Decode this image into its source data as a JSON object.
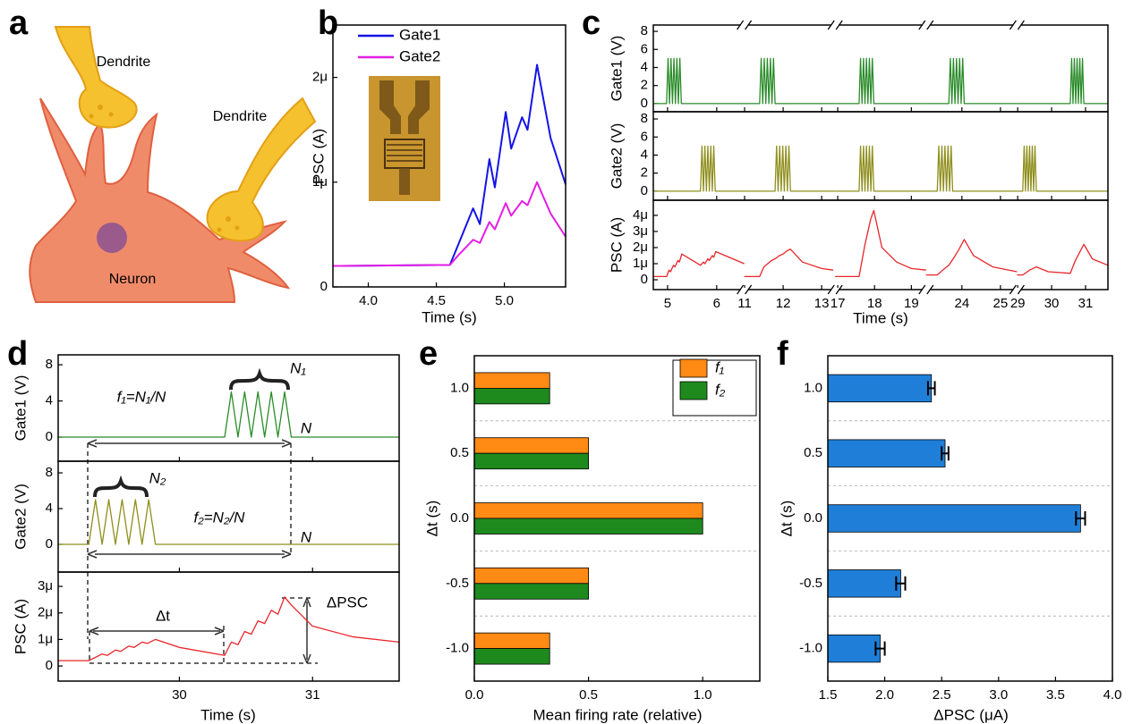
{
  "panel_labels": [
    "a",
    "b",
    "c",
    "d",
    "e",
    "f"
  ],
  "illustration": {
    "labels": [
      "Dendrite",
      "Dendrite",
      "Neuron"
    ]
  },
  "chart_data": [
    {
      "type": "line",
      "x_label": "Time (s)",
      "y_label": "PSC (A)",
      "xlim": [
        3.74,
        5.45
      ],
      "xticks": [
        {
          "value": 4,
          "label": "4.0"
        },
        4.5,
        {
          "value": 5,
          "label": "5.0"
        }
      ],
      "ylim": [
        0,
        2.5e-06
      ],
      "yticks": [
        0,
        {
          "value": 1e-06,
          "label": "1μ"
        },
        {
          "value": 2e-06,
          "label": "2μ"
        }
      ],
      "legend": "upper-left",
      "x": [
        3.74,
        4.6,
        4.66,
        4.77,
        4.82,
        4.89,
        4.93,
        5.01,
        5.05,
        5.13,
        5.17,
        5.24,
        5.34,
        5.45
      ],
      "series": [
        {
          "name": "Gate1",
          "color": "#1414e6",
          "values": [
            2e-07,
            2.1e-07,
            4e-07,
            7.5e-07,
            6e-07,
            1.22e-06,
            9.5e-07,
            1.67e-06,
            1.32e-06,
            1.62e-06,
            1.5e-06,
            2.12e-06,
            1.42e-06,
            9.8e-07
          ]
        },
        {
          "name": "Gate2",
          "color": "#e41ee4",
          "values": [
            2e-07,
            2.1e-07,
            3e-07,
            4.5e-07,
            4.2e-07,
            6.2e-07,
            5.5e-07,
            8e-07,
            6.8e-07,
            8.2e-07,
            7.8e-07,
            1e-06,
            7e-07,
            4.8e-07
          ]
        }
      ]
    },
    {
      "type": "brokenline",
      "x_label": "Time (s)",
      "segments": [
        {
          "xlim": [
            4.71,
            6.56
          ],
          "xticks": [
            5,
            6
          ]
        },
        {
          "xlim": [
            10.99,
            13.35
          ],
          "xticks": [
            11,
            12,
            13
          ]
        },
        {
          "xlim": [
            16.93,
            19.4
          ],
          "xticks": [
            17,
            18,
            19
          ]
        },
        {
          "xlim": [
            23.07,
            25.43
          ],
          "xticks": [
            24,
            25
          ]
        },
        {
          "xlim": [
            28.98,
            31.66
          ],
          "xticks": [
            29,
            30,
            31
          ]
        }
      ],
      "rows": [
        {
          "y_label": "Gate1 (V)",
          "color": "#2a8c2a",
          "ylim": [
            -0.9,
            8.7
          ],
          "yticks": [
            0,
            2,
            4,
            6,
            8
          ],
          "pieces": [
            {
              "x": [
                4.71,
                4.98,
                5.01,
                5.04,
                5.07,
                5.1,
                5.13,
                5.16,
                5.19,
                5.22,
                5.25,
                5.28,
                6.56
              ],
              "values": [
                0,
                0,
                5,
                0,
                5,
                0,
                5,
                0,
                5,
                0,
                5,
                0,
                0
              ]
            },
            {
              "x": [
                10.99,
                11.39,
                11.43,
                11.47,
                11.51,
                11.55,
                11.59,
                11.63,
                11.67,
                11.71,
                11.75,
                11.79,
                13.35
              ],
              "values": [
                0,
                0,
                5,
                0,
                5,
                0,
                5,
                0,
                5,
                0,
                5,
                0,
                0
              ]
            },
            {
              "x": [
                16.93,
                17.58,
                17.62,
                17.66,
                17.7,
                17.74,
                17.78,
                17.82,
                17.86,
                17.9,
                17.94,
                17.98,
                19.4
              ],
              "values": [
                0,
                0,
                5,
                0,
                5,
                0,
                5,
                0,
                5,
                0,
                5,
                0,
                0
              ]
            },
            {
              "x": [
                23.07,
                23.66,
                23.7,
                23.74,
                23.78,
                23.82,
                23.86,
                23.9,
                23.94,
                23.98,
                24.02,
                24.06,
                25.43
              ],
              "values": [
                0,
                0,
                5,
                0,
                5,
                0,
                5,
                0,
                5,
                0,
                5,
                0,
                0
              ]
            },
            {
              "x": [
                28.98,
                30.55,
                30.59,
                30.63,
                30.67,
                30.71,
                30.75,
                30.79,
                30.83,
                30.87,
                30.91,
                30.95,
                31.66
              ],
              "values": [
                0,
                0,
                5,
                0,
                5,
                0,
                5,
                0,
                5,
                0,
                5,
                0,
                0
              ]
            }
          ]
        },
        {
          "y_label": "Gate2 (V)",
          "color": "#8f8f1e",
          "ylim": [
            -1.0,
            8.8
          ],
          "yticks": [
            0,
            2,
            4,
            6,
            8
          ],
          "pieces": [
            {
              "x": [
                4.71,
                5.67,
                5.7,
                5.73,
                5.76,
                5.79,
                5.82,
                5.85,
                5.88,
                5.91,
                5.94,
                5.97,
                6.56
              ],
              "values": [
                0,
                0,
                5,
                0,
                5,
                0,
                5,
                0,
                5,
                0,
                5,
                0,
                0
              ]
            },
            {
              "x": [
                10.99,
                11.79,
                11.83,
                11.87,
                11.91,
                11.95,
                11.99,
                12.03,
                12.07,
                12.11,
                12.15,
                12.19,
                13.35
              ],
              "values": [
                0,
                0,
                5,
                0,
                5,
                0,
                5,
                0,
                5,
                0,
                5,
                0,
                0
              ]
            },
            {
              "x": [
                16.93,
                17.58,
                17.62,
                17.66,
                17.7,
                17.74,
                17.78,
                17.82,
                17.86,
                17.9,
                17.94,
                17.98,
                19.4
              ],
              "values": [
                0,
                0,
                5,
                0,
                5,
                0,
                5,
                0,
                5,
                0,
                5,
                0,
                0
              ]
            },
            {
              "x": [
                23.07,
                23.36,
                23.4,
                23.44,
                23.48,
                23.52,
                23.56,
                23.6,
                23.64,
                23.68,
                23.72,
                23.76,
                25.43
              ],
              "values": [
                0,
                0,
                5,
                0,
                5,
                0,
                5,
                0,
                5,
                0,
                5,
                0,
                0
              ]
            },
            {
              "x": [
                28.98,
                29.15,
                29.19,
                29.23,
                29.27,
                29.31,
                29.35,
                29.39,
                29.43,
                29.47,
                29.51,
                29.55,
                31.66
              ],
              "values": [
                0,
                0,
                5,
                0,
                5,
                0,
                5,
                0,
                5,
                0,
                5,
                0,
                0
              ]
            }
          ]
        },
        {
          "y_label": "PSC (A)",
          "color": "#e8262a",
          "ylim": [
            -6.1e-07,
            4.94e-06
          ],
          "yticks": [
            0,
            {
              "value": 1e-06,
              "label": "1μ"
            },
            {
              "value": 2e-06,
              "label": "2μ"
            },
            {
              "value": 3e-06,
              "label": "3μ"
            },
            {
              "value": 4e-06,
              "label": "4μ"
            }
          ],
          "pieces": [
            {
              "x": [
                4.71,
                4.98,
                5.03,
                5.06,
                5.12,
                5.15,
                5.21,
                5.24,
                5.29,
                5.67,
                5.73,
                5.76,
                5.82,
                5.85,
                5.91,
                5.94,
                5.98,
                6.56
              ],
              "values": [
                2e-07,
                2e-07,
                6e-07,
                5e-07,
                9e-07,
                8e-07,
                1.2e-06,
                1.1e-06,
                1.6e-06,
                9e-07,
                1.1e-06,
                1e-06,
                1.3e-06,
                1.2e-06,
                1.5e-06,
                1.4e-06,
                1.75e-06,
                1e-06
              ]
            },
            {
              "x": [
                10.99,
                11.39,
                11.5,
                11.6,
                11.7,
                11.79,
                11.9,
                12.0,
                12.1,
                12.19,
                12.5,
                13.0,
                13.3
              ],
              "values": [
                2e-07,
                2e-07,
                8e-07,
                1e-06,
                1.2e-06,
                1.3e-06,
                1.5e-06,
                1.6e-06,
                1.8e-06,
                1.9e-06,
                1.1e-06,
                7e-07,
                6e-07
              ]
            },
            {
              "x": [
                16.93,
                17.58,
                17.66,
                17.74,
                17.82,
                17.9,
                17.98,
                18.2,
                18.6,
                19.0,
                19.4
              ],
              "values": [
                2e-07,
                2e-07,
                1.2e-06,
                2.2e-06,
                3e-06,
                3.8e-06,
                4.3e-06,
                2e-06,
                1.1e-06,
                7e-07,
                6e-07
              ]
            },
            {
              "x": [
                23.07,
                23.36,
                23.5,
                23.66,
                23.8,
                23.95,
                24.06,
                24.3,
                24.8,
                25.43
              ],
              "values": [
                3e-07,
                3e-07,
                6e-07,
                9e-07,
                1.4e-06,
                2e-06,
                2.5e-06,
                1.5e-06,
                8e-07,
                5e-07
              ]
            },
            {
              "x": [
                28.98,
                29.15,
                29.35,
                29.55,
                29.9,
                30.55,
                30.7,
                30.85,
                30.95,
                31.2,
                31.66
              ],
              "values": [
                3e-07,
                3e-07,
                6e-07,
                8e-07,
                5e-07,
                4e-07,
                1.2e-06,
                1.8e-06,
                2.2e-06,
                1.3e-06,
                9e-07
              ]
            }
          ]
        }
      ]
    },
    {
      "type": "stackline",
      "x_label": "Time (s)",
      "xlim": [
        29.09,
        31.65
      ],
      "xticks": [
        30,
        31
      ],
      "rows": [
        {
          "y_label": "Gate1 (V)",
          "color": "#2a8c2a",
          "ylim": [
            -2.67,
            9.1
          ],
          "yticks": [
            0,
            4,
            8
          ],
          "x": [
            29.09,
            30.34,
            30.39,
            30.44,
            30.49,
            30.54,
            30.59,
            30.64,
            30.69,
            30.74,
            30.79,
            30.84,
            31.65
          ],
          "values": [
            0,
            0,
            5,
            0,
            5,
            0,
            5,
            0,
            5,
            0,
            5,
            0,
            0
          ]
        },
        {
          "y_label": "Gate2 (V)",
          "color": "#8f8f1e",
          "ylim": [
            -3.1,
            9.3
          ],
          "yticks": [
            0,
            4,
            8
          ],
          "x": [
            29.09,
            29.32,
            29.37,
            29.42,
            29.47,
            29.52,
            29.57,
            29.62,
            29.67,
            29.72,
            29.77,
            29.82,
            31.65
          ],
          "values": [
            0,
            0,
            5,
            0,
            5,
            0,
            5,
            0,
            5,
            0,
            5,
            0,
            0
          ]
        },
        {
          "y_label": "PSC (A)",
          "color": "#e8262a",
          "ylim": [
            -5.7e-07,
            3.54e-06
          ],
          "yticks": [
            0,
            {
              "value": 1e-06,
              "label": "1μ"
            },
            {
              "value": 2e-06,
              "label": "2μ"
            },
            {
              "value": 3e-06,
              "label": "3μ"
            }
          ],
          "x": [
            29.09,
            29.32,
            29.42,
            29.46,
            29.52,
            29.56,
            29.62,
            29.66,
            29.72,
            29.76,
            29.82,
            30.0,
            30.34,
            30.39,
            30.44,
            30.49,
            30.54,
            30.59,
            30.64,
            30.69,
            30.74,
            30.79,
            30.84,
            31.0,
            31.3,
            31.65
          ],
          "values": [
            2e-07,
            2e-07,
            4.5e-07,
            4e-07,
            6e-07,
            5.5e-07,
            7.5e-07,
            7e-07,
            9e-07,
            8.5e-07,
            1e-06,
            7e-07,
            4e-07,
            9e-07,
            8e-07,
            1.3e-06,
            1.2e-06,
            1.7e-06,
            1.6e-06,
            2.1e-06,
            1.95e-06,
            2.6e-06,
            2.3e-06,
            1.5e-06,
            1.1e-06,
            9e-07
          ]
        }
      ],
      "annotations": [
        "f₁=N₁/N",
        "N₁",
        "N",
        "N₂",
        "f₂=N₂/N",
        "N",
        "Δt",
        "ΔPSC"
      ]
    },
    {
      "type": "bar",
      "orientation": "horizontal",
      "x_label": "Mean firing rate (relative)",
      "y_label": "Δt (s)",
      "categories": [
        "1.0",
        "0.5",
        "0.0",
        "-0.5",
        "-1.0"
      ],
      "xlim": [
        0,
        1.25
      ],
      "xticks": [
        {
          "value": 0,
          "label": "0.0"
        },
        0.5,
        {
          "value": 1,
          "label": "1.0"
        }
      ],
      "legend": "upper-right",
      "series": [
        {
          "name": "f₁",
          "color": "#ff8a14",
          "values": [
            0.33,
            0.5,
            1.0,
            0.5,
            0.33
          ]
        },
        {
          "name": "f₂",
          "color": "#1e8a1e",
          "values": [
            0.33,
            0.5,
            1.0,
            0.5,
            0.33
          ]
        }
      ]
    },
    {
      "type": "bar",
      "orientation": "horizontal",
      "x_label": "ΔPSC (μA)",
      "y_label": "Δt (s)",
      "categories": [
        "1.0",
        "0.5",
        "0.0",
        "-0.5",
        "-1.0"
      ],
      "xlim": [
        1.5,
        4.0
      ],
      "xticks": [
        1.5,
        {
          "value": 2,
          "label": "2.0"
        },
        2.5,
        {
          "value": 3,
          "label": "3.0"
        },
        3.5,
        {
          "value": 4,
          "label": "4.0"
        }
      ],
      "color": "#1f7fd8",
      "values": [
        2.41,
        2.53,
        3.72,
        2.14,
        1.96
      ],
      "errors": [
        0.03,
        0.03,
        0.04,
        0.04,
        0.04
      ]
    }
  ]
}
